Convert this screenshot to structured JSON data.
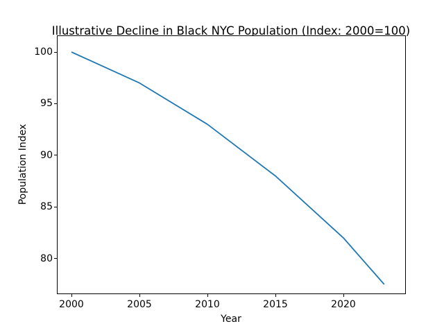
{
  "chart_data": {
    "type": "line",
    "title": "Illustrative Decline in Black NYC Population (Index: 2000=100)",
    "xlabel": "Year",
    "ylabel": "Population Index",
    "x": [
      2000,
      2005,
      2010,
      2015,
      2020,
      2023
    ],
    "series": [
      {
        "name": "Population Index",
        "values": [
          100,
          97,
          93,
          88,
          82,
          77.5
        ]
      }
    ],
    "xticks": [
      2000,
      2005,
      2010,
      2015,
      2020
    ],
    "yticks": [
      80,
      85,
      90,
      95,
      100
    ],
    "xlim": [
      1998.93,
      2024.59
    ],
    "ylim": [
      76.55,
      101.61
    ],
    "grid": false,
    "legend": null,
    "line_color": "#1f77b4",
    "axes_edge_color": "#000000",
    "text_color": "#000000",
    "background_color": "#ffffff"
  }
}
